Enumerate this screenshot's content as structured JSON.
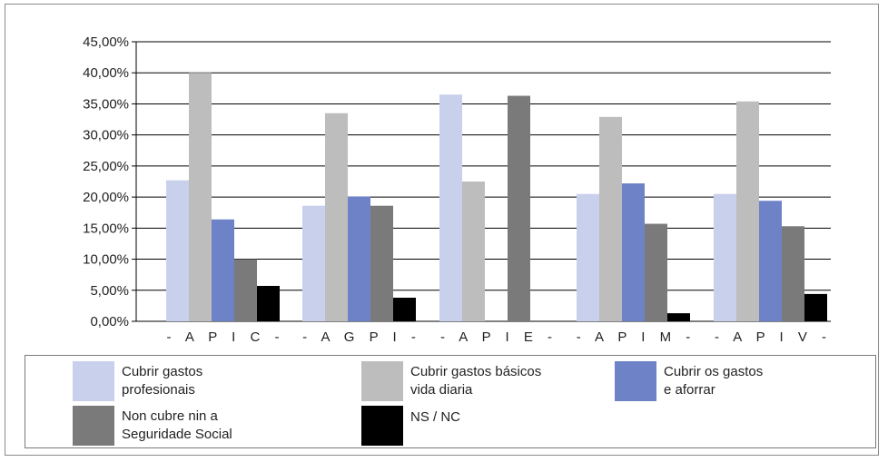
{
  "chart_data": {
    "type": "bar",
    "categories": [
      "- A P I C -",
      "- A G P I -",
      "- A P I E -",
      "- A P I M -",
      "- A P I V -"
    ],
    "series": [
      {
        "name": "Cubrir gastos profesionais",
        "color": "#c9d0ec",
        "values": [
          22.7,
          18.6,
          36.5,
          20.5,
          20.5
        ]
      },
      {
        "name": "Cubrir gastos básicos vida diaria",
        "color": "#bdbdbd",
        "values": [
          40.0,
          33.5,
          22.5,
          32.9,
          35.4
        ]
      },
      {
        "name": "Cubrir os gastos e aforrar",
        "color": "#6e82c8",
        "values": [
          16.4,
          20.1,
          0,
          22.2,
          19.4
        ]
      },
      {
        "name": "Non cubre nin a Seguridade Social",
        "color": "#7a7a7a",
        "values": [
          10.0,
          18.6,
          36.3,
          15.7,
          15.3
        ]
      },
      {
        "name": "NS / NC",
        "color": "#000000",
        "values": [
          5.7,
          3.8,
          0,
          1.3,
          4.4
        ]
      }
    ],
    "yticks": [
      "0,00%",
      "5,00%",
      "10,00%",
      "15,00%",
      "20,00%",
      "25,00%",
      "30,00%",
      "35,00%",
      "40,00%",
      "45,00%"
    ],
    "ylim": [
      0,
      45
    ],
    "grid": true,
    "legend_position": "bottom"
  },
  "legend": [
    {
      "line1": "Cubrir gastos",
      "line2": "profesionais",
      "color": "#c9d0ec"
    },
    {
      "line1": "Cubrir gastos básicos",
      "line2": "vida diaria",
      "color": "#bdbdbd"
    },
    {
      "line1": "Cubrir os gastos",
      "line2": "e aforrar",
      "color": "#6e82c8"
    },
    {
      "line1": "Non cubre nin a",
      "line2": "Seguridade Social",
      "color": "#7a7a7a"
    },
    {
      "line1": "NS / NC",
      "line2": "",
      "color": "#000000"
    }
  ]
}
